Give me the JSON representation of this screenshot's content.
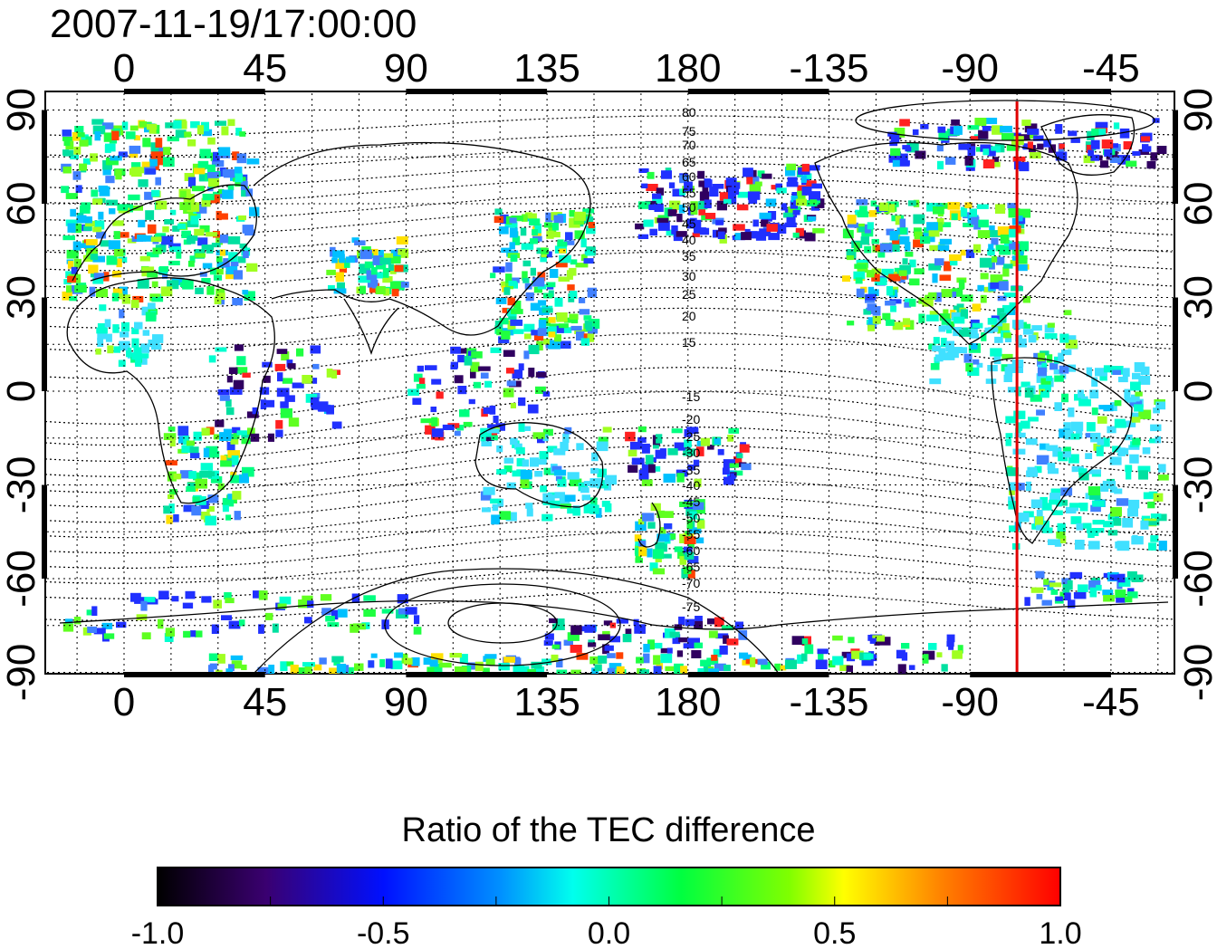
{
  "timestamp": "2007-11-19/17:00:00",
  "map": {
    "lon_ticks": [
      "0",
      "45",
      "90",
      "135",
      "180",
      "-135",
      "-90",
      "-45"
    ],
    "lat_ticks": [
      "90",
      "60",
      "30",
      "0",
      "-30",
      "-60",
      "-90"
    ],
    "magnetic_lat_labels": [
      "80",
      "75",
      "70",
      "65",
      "60",
      "55",
      "50",
      "45",
      "40",
      "35",
      "30",
      "25",
      "20",
      "15",
      "-15",
      "-20",
      "-25",
      "-30",
      "-35",
      "-40",
      "-45",
      "-50",
      "-55",
      "-60",
      "-65",
      "-70",
      "-75"
    ],
    "meridian_marker_color": "#e00000",
    "meridian_marker_lon": -75
  },
  "colorbar": {
    "title": "Ratio of the TEC difference",
    "tick_labels": [
      "-1.0",
      "-0.5",
      "0.0",
      "0.5",
      "1.0"
    ],
    "colors": [
      "#000000",
      "#4b0082",
      "#0000ff",
      "#00ffff",
      "#00ff00",
      "#ffff00",
      "#ff8000",
      "#ff0000"
    ]
  }
}
